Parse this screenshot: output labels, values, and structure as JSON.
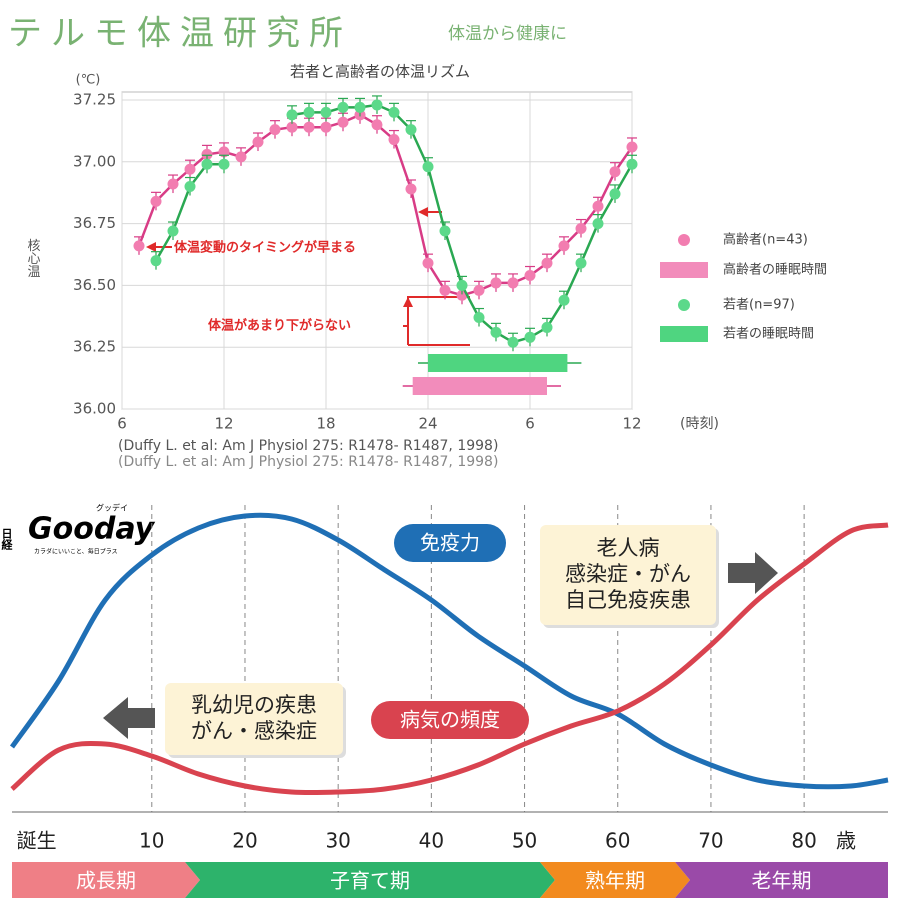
{
  "header": {
    "title": "テルモ体温研究所",
    "tagline": "体温から健康に"
  },
  "logo": {
    "small": "日経",
    "name": "Gooday",
    "kana": "グッデイ",
    "slogan": "カラダにいいこと、毎日プラス"
  },
  "chart_data": [
    {
      "type": "line",
      "title": "若者と高齢者の体温リズム",
      "y_unit": "(℃)",
      "y_label": "核心温",
      "x_unit": "(時刻)",
      "citation": "(Duffy L. et al: Am J Physiol 275: R1478- R1487, 1998)",
      "xlim": [
        6,
        36
      ],
      "ylim": [
        36,
        37.25
      ],
      "xticks": [
        6,
        12,
        18,
        24,
        {
          "value": 30,
          "label": "6"
        },
        {
          "value": 36,
          "label": "12"
        }
      ],
      "yticks": [
        {
          "value": 36,
          "label": "36.00"
        },
        36.25,
        {
          "value": 36.5,
          "label": "36.50"
        },
        36.75,
        {
          "value": 37,
          "label": "37.00"
        },
        37.25
      ],
      "grid": true,
      "x": [
        7,
        8,
        9,
        10,
        11,
        12,
        13,
        14,
        15,
        16,
        17,
        18,
        19,
        20,
        21,
        22,
        23,
        24,
        25,
        26,
        27,
        28,
        29,
        30,
        31,
        32,
        33,
        34,
        35,
        36
      ],
      "series": [
        {
          "name": "高齢者(n=43)",
          "color": "#d83c86",
          "marker_color": "#f27db0",
          "values": [
            36.66,
            36.84,
            36.91,
            36.97,
            37.03,
            37.04,
            37.02,
            37.08,
            37.13,
            37.14,
            37.14,
            37.14,
            37.16,
            37.19,
            37.15,
            37.09,
            36.89,
            36.59,
            36.48,
            36.46,
            36.48,
            36.51,
            36.51,
            36.54,
            36.59,
            36.66,
            36.73,
            36.82,
            36.96,
            37.06
          ]
        },
        {
          "name": "若者(n=97)",
          "color": "#2aa852",
          "marker_color": "#5cd98a",
          "values": [
            null,
            36.6,
            36.72,
            36.9,
            36.99,
            36.99,
            null,
            null,
            null,
            37.19,
            37.2,
            37.2,
            37.22,
            37.22,
            37.23,
            37.2,
            37.13,
            36.98,
            36.72,
            36.5,
            36.37,
            36.31,
            36.27,
            36.29,
            36.33,
            36.44,
            36.59,
            36.75,
            36.87,
            36.99
          ]
        }
      ],
      "sleep": [
        {
          "name": "高齢者の睡眠時間",
          "color": "#f28cbb",
          "edge": "#d83c86",
          "start": 23.1,
          "end": 31.0
        },
        {
          "name": "若者の睡眠時間",
          "color": "#4fd580",
          "edge": "#2aa852",
          "start": 24.0,
          "end": 32.2
        }
      ],
      "annotations": [
        "体温変動のタイミングが早まる",
        "体温があまり下がらない"
      ]
    },
    {
      "type": "line",
      "x_unit": "歳",
      "xlim": [
        -5,
        89
      ],
      "ylim": [
        0,
        100
      ],
      "xticks": [
        {
          "value": 0,
          "label": "誕生"
        },
        10,
        20,
        30,
        40,
        50,
        60,
        70,
        80
      ],
      "x": [
        -5,
        0,
        5,
        10,
        15,
        20,
        25,
        30,
        35,
        40,
        45,
        50,
        55,
        60,
        65,
        70,
        75,
        80,
        85,
        89
      ],
      "series": [
        {
          "name": "免疫力",
          "color": "#1f6fb5",
          "values": [
            21,
            43,
            70,
            85,
            94,
            98,
            97,
            90,
            80,
            70,
            58,
            48,
            38,
            32,
            22,
            15,
            10,
            8,
            8,
            10
          ]
        },
        {
          "name": "病気の頻度",
          "color": "#d9434f",
          "values": [
            7,
            20,
            22,
            18,
            12,
            8,
            6,
            6,
            7,
            10,
            15,
            22,
            28,
            33,
            42,
            55,
            70,
            82,
            93,
            95
          ]
        }
      ],
      "notes": [
        [
          "老人病",
          "感染症・がん",
          "自己免疫疾患"
        ],
        [
          "乳幼児の疾患",
          "がん・感染症"
        ]
      ],
      "stages": [
        {
          "name": "成長期",
          "color": "#ef7f86"
        },
        {
          "name": "子育て期",
          "color": "#2db36b"
        },
        {
          "name": "熟年期",
          "color": "#f28a1e"
        },
        {
          "name": "老年期",
          "color": "#9a4aa8"
        }
      ]
    }
  ]
}
